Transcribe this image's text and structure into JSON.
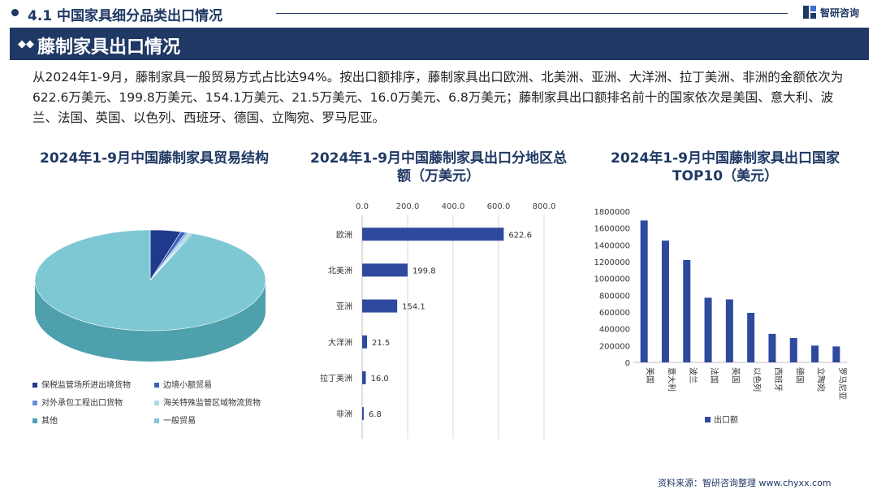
{
  "header": {
    "section_title": "4.1 中国家具细分品类出口情况",
    "brand_name": "智研咨询"
  },
  "banner": {
    "title": "藤制家具出口情况"
  },
  "description": "从2024年1-9月，藤制家具一般贸易方式占比达94%。按出口额排序，藤制家具出口欧洲、北美洲、亚洲、大洋洲、拉丁美洲、非洲的金额依次为622.6万美元、199.8万美元、154.1万美元、21.5万美元、16.0万美元、6.8万美元；藤制家具出口额排名前十的国家依次是美国、意大利、波兰、法国、英国、以色列、西班牙、德国、立陶宛、罗马尼亚。",
  "colors": {
    "navy": "#1f3864",
    "bar_blue": "#2e4a9e",
    "pie_main": "#7ec8d3",
    "pie_side": "#4ea0ad"
  },
  "chart_data": [
    {
      "type": "pie",
      "title": "2024年1-9月中国藤制家具贸易结构",
      "categories": [
        "保税监管场所进出境货物",
        "边境小额贸易",
        "对外承包工程出口货物",
        "海关特殊监管区域物流货物",
        "其他",
        "一般贸易"
      ],
      "values": [
        4.3,
        0.7,
        0.3,
        0.5,
        0.2,
        94.0
      ],
      "colors": [
        "#1f3a8a",
        "#3b5fc0",
        "#6a8fd8",
        "#a9d8e8",
        "#4ba3b3",
        "#7ec8d3"
      ],
      "legend_position": "bottom"
    },
    {
      "type": "bar",
      "orientation": "horizontal",
      "title": "2024年1-9月中国藤制家具出口分地区总额（万美元）",
      "categories": [
        "欧洲",
        "北美洲",
        "亚洲",
        "大洋洲",
        "拉丁美洲",
        "非洲"
      ],
      "values": [
        622.6,
        199.8,
        154.1,
        21.5,
        16.0,
        6.8
      ],
      "value_labels": [
        "622.6",
        "199.8",
        "154.1",
        "21.5",
        "16.0",
        "6.8"
      ],
      "xlim": [
        0,
        800
      ],
      "xticks": [
        "0.0",
        "200.0",
        "400.0",
        "600.0",
        "800.0"
      ],
      "grid": true
    },
    {
      "type": "bar",
      "title": "2024年1-9月中国藤制家具出口国家TOP10（美元）",
      "categories": [
        "美国",
        "意大利",
        "波兰",
        "法国",
        "英国",
        "以色列",
        "西班牙",
        "德国",
        "立陶宛",
        "罗马尼亚"
      ],
      "series": [
        {
          "name": "出口额",
          "values": [
            1690000,
            1450000,
            1220000,
            770000,
            750000,
            590000,
            340000,
            290000,
            200000,
            190000
          ]
        }
      ],
      "ylim": [
        0,
        1800000
      ],
      "yticks": [
        "0",
        "200000",
        "400000",
        "600000",
        "800000",
        "1000000",
        "1200000",
        "1400000",
        "1600000",
        "1800000"
      ],
      "legend_position": "bottom",
      "grid": false
    }
  ],
  "source": "资料来源：智研咨询整理  www.chyxx.com"
}
